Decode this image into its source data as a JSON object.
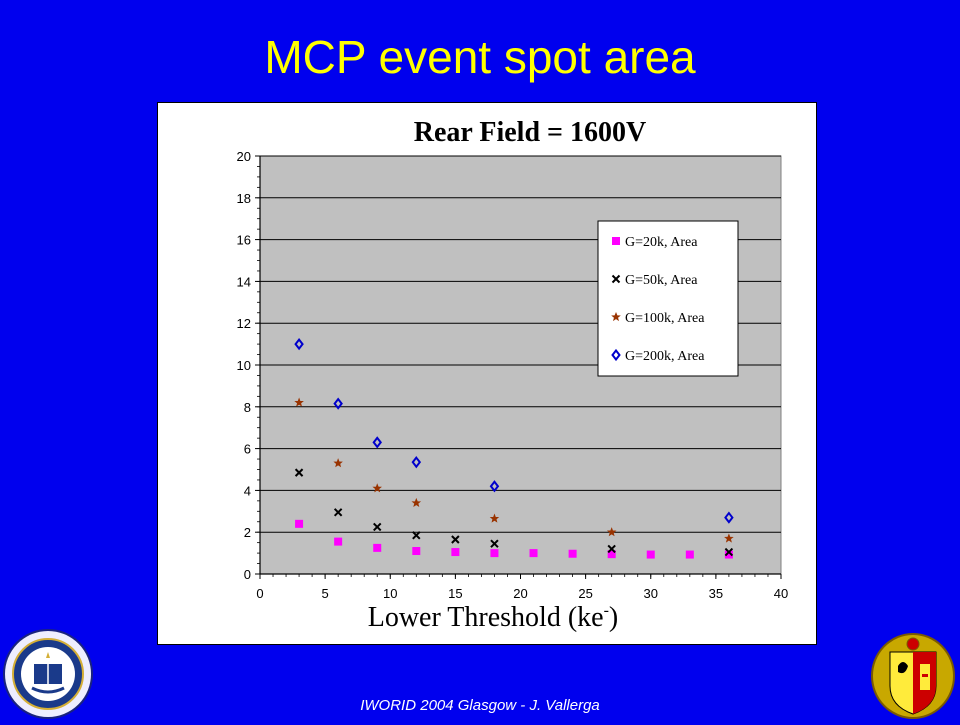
{
  "slide": {
    "title": "MCP event spot area",
    "footer": "IWORID 2004 Glasgow - J. Vallerga"
  },
  "chart_data": {
    "type": "scatter",
    "title": "Rear Field = 1600V",
    "xlabel": "Lower Threshold (ke-)",
    "xlabel_main": "Lower Threshold (ke",
    "xlabel_sup": "-",
    "xlabel_end": ")",
    "ylabel": "",
    "xlim": [
      0,
      40
    ],
    "ylim": [
      0,
      20
    ],
    "x_ticks": [
      0,
      5,
      10,
      15,
      20,
      25,
      30,
      35,
      40
    ],
    "y_ticks": [
      0,
      2,
      4,
      6,
      8,
      10,
      12,
      14,
      16,
      18,
      20
    ],
    "grid": "horizontal",
    "legend_position": "upper-right",
    "plot_background": "#c0c0c0",
    "series": [
      {
        "name": "G=20k, Area",
        "marker": "square",
        "color": "#ff00ff",
        "points": [
          [
            3,
            2.4
          ],
          [
            6,
            1.55
          ],
          [
            9,
            1.25
          ],
          [
            12,
            1.1
          ],
          [
            15,
            1.05
          ],
          [
            18,
            1.0
          ],
          [
            21,
            1.0
          ],
          [
            24,
            0.97
          ],
          [
            27,
            0.95
          ],
          [
            30,
            0.93
          ],
          [
            33,
            0.93
          ],
          [
            36,
            0.93
          ]
        ]
      },
      {
        "name": "G=50k, Area",
        "marker": "x",
        "color": "#000000",
        "points": [
          [
            3,
            4.85
          ],
          [
            6,
            2.95
          ],
          [
            9,
            2.25
          ],
          [
            12,
            1.85
          ],
          [
            15,
            1.65
          ],
          [
            18,
            1.45
          ],
          [
            27,
            1.2
          ],
          [
            36,
            1.05
          ]
        ]
      },
      {
        "name": "G=100k, Area",
        "marker": "star",
        "color": "#993300",
        "points": [
          [
            3,
            8.2
          ],
          [
            6,
            5.3
          ],
          [
            9,
            4.1
          ],
          [
            12,
            3.4
          ],
          [
            18,
            2.65
          ],
          [
            27,
            2.0
          ],
          [
            36,
            1.7
          ]
        ]
      },
      {
        "name": "G=200k, Area",
        "marker": "diamond",
        "color": "#0000cc",
        "points": [
          [
            3,
            11.0
          ],
          [
            6,
            8.15
          ],
          [
            9,
            6.3
          ],
          [
            12,
            5.35
          ],
          [
            18,
            4.2
          ],
          [
            36,
            2.7
          ]
        ]
      }
    ]
  }
}
